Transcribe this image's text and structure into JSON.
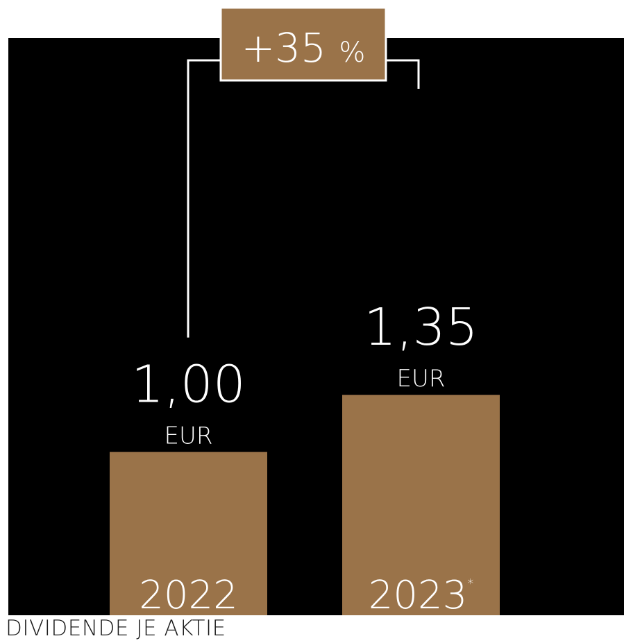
{
  "chart_data": {
    "type": "bar",
    "title": "DIVIDENDE JE AKTIE",
    "categories": [
      "2022",
      "2023"
    ],
    "category_footnotes": [
      "",
      "*"
    ],
    "values": [
      1.0,
      1.35
    ],
    "value_labels": [
      "1,00",
      "1,35"
    ],
    "unit": "EUR",
    "change_label": "+35 %",
    "ylim": [
      0,
      1.95
    ],
    "grid": false,
    "legend": "none"
  },
  "colors": {
    "background": "#000000",
    "bar": "#9a7349",
    "badge": "#9a7349",
    "text_light": "#ffffff",
    "title": "#1a1a1a"
  }
}
